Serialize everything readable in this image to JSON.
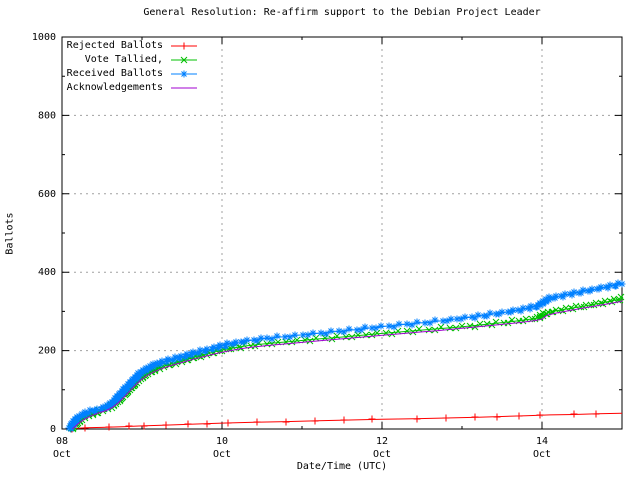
{
  "title": "General Resolution: Re-affirm support to the Debian Project Leader",
  "axes": {
    "ylabel": "Ballots",
    "xlabel": "Date/Time (UTC)",
    "yrange": [
      0,
      1000
    ],
    "xrange_days": [
      0,
      7
    ],
    "yticks": [
      0,
      200,
      400,
      600,
      800,
      1000
    ],
    "yminor": [
      100,
      300,
      500,
      700,
      900
    ],
    "xticks": [
      {
        "t": 0,
        "line1": "08",
        "line2": "Oct"
      },
      {
        "t": 2,
        "line1": "10",
        "line2": "Oct"
      },
      {
        "t": 4,
        "line1": "12",
        "line2": "Oct"
      },
      {
        "t": 6,
        "line1": "14",
        "line2": "Oct"
      }
    ],
    "xminor_days": [
      1,
      3,
      5
    ],
    "grid_y": [
      200,
      400,
      600,
      800
    ],
    "grid_x_days": [
      2,
      4,
      6
    ]
  },
  "colors": {
    "background": "#ffffff",
    "border": "#000000",
    "grid": "#a0a0a0",
    "text": "#000000"
  },
  "chart_data": {
    "type": "line",
    "x_unit": "days since 08 Oct 00:00 UTC",
    "ylabel": "Ballots",
    "xlabel": "Date/Time (UTC)",
    "legend_position": "top-left",
    "grid": true,
    "series": [
      {
        "name": "Rejected Ballots",
        "color": "#ff0000",
        "marker": "plus",
        "marker_value_step": 1.8,
        "points": [
          [
            0.12,
            1
          ],
          [
            0.3,
            3
          ],
          [
            0.5,
            4
          ],
          [
            0.8,
            6
          ],
          [
            1.0,
            8
          ],
          [
            1.3,
            10
          ],
          [
            1.6,
            12
          ],
          [
            2.0,
            15
          ],
          [
            2.4,
            17
          ],
          [
            2.8,
            19
          ],
          [
            3.2,
            21
          ],
          [
            3.6,
            23
          ],
          [
            4.0,
            25
          ],
          [
            4.4,
            26
          ],
          [
            4.8,
            28
          ],
          [
            5.2,
            30
          ],
          [
            5.5,
            32
          ],
          [
            5.8,
            34
          ],
          [
            6.1,
            36
          ],
          [
            6.4,
            37
          ],
          [
            6.7,
            39
          ],
          [
            7.0,
            40
          ]
        ]
      },
      {
        "name": "Vote Tallied,",
        "color": "#00c000",
        "marker": "cross",
        "marker_value_step": 1.5,
        "points": [
          [
            0.12,
            0
          ],
          [
            0.15,
            8
          ],
          [
            0.19,
            16
          ],
          [
            0.24,
            24
          ],
          [
            0.31,
            32
          ],
          [
            0.39,
            39
          ],
          [
            0.47,
            45
          ],
          [
            0.55,
            50
          ],
          [
            0.62,
            57
          ],
          [
            0.68,
            67
          ],
          [
            0.74,
            79
          ],
          [
            0.8,
            92
          ],
          [
            0.86,
            105
          ],
          [
            0.93,
            119
          ],
          [
            1.0,
            132
          ],
          [
            1.08,
            143
          ],
          [
            1.17,
            152
          ],
          [
            1.27,
            160
          ],
          [
            1.38,
            167
          ],
          [
            1.5,
            174
          ],
          [
            1.63,
            182
          ],
          [
            1.76,
            189
          ],
          [
            1.89,
            196
          ],
          [
            2.02,
            202
          ],
          [
            2.15,
            207
          ],
          [
            2.3,
            212
          ],
          [
            2.48,
            216
          ],
          [
            2.68,
            220
          ],
          [
            2.9,
            224
          ],
          [
            3.15,
            229
          ],
          [
            3.4,
            233
          ],
          [
            3.68,
            238
          ],
          [
            3.95,
            243
          ],
          [
            4.18,
            247
          ],
          [
            4.42,
            251
          ],
          [
            4.66,
            255
          ],
          [
            4.9,
            259
          ],
          [
            5.12,
            263
          ],
          [
            5.35,
            268
          ],
          [
            5.58,
            273
          ],
          [
            5.78,
            278
          ],
          [
            5.95,
            283
          ],
          [
            6.04,
            294
          ],
          [
            6.14,
            300
          ],
          [
            6.28,
            305
          ],
          [
            6.45,
            311
          ],
          [
            6.62,
            317
          ],
          [
            6.78,
            323
          ],
          [
            6.9,
            328
          ],
          [
            7.0,
            333
          ]
        ]
      },
      {
        "name": "Received Ballots",
        "color": "#0080ff",
        "marker": "asterisk",
        "marker_value_step": 1.5,
        "points": [
          [
            0.1,
            0
          ],
          [
            0.13,
            10
          ],
          [
            0.16,
            20
          ],
          [
            0.2,
            28
          ],
          [
            0.26,
            36
          ],
          [
            0.33,
            43
          ],
          [
            0.4,
            47
          ],
          [
            0.47,
            51
          ],
          [
            0.54,
            55
          ],
          [
            0.6,
            61
          ],
          [
            0.66,
            72
          ],
          [
            0.72,
            85
          ],
          [
            0.78,
            99
          ],
          [
            0.84,
            112
          ],
          [
            0.9,
            125
          ],
          [
            0.97,
            140
          ],
          [
            1.04,
            150
          ],
          [
            1.12,
            159
          ],
          [
            1.2,
            167
          ],
          [
            1.3,
            173
          ],
          [
            1.42,
            180
          ],
          [
            1.54,
            187
          ],
          [
            1.66,
            194
          ],
          [
            1.78,
            200
          ],
          [
            1.9,
            206
          ],
          [
            2.0,
            212
          ],
          [
            2.12,
            218
          ],
          [
            2.25,
            223
          ],
          [
            2.4,
            227
          ],
          [
            2.55,
            231
          ],
          [
            2.75,
            235
          ],
          [
            2.95,
            239
          ],
          [
            3.2,
            244
          ],
          [
            3.45,
            249
          ],
          [
            3.7,
            254
          ],
          [
            3.95,
            260
          ],
          [
            4.15,
            264
          ],
          [
            4.35,
            268
          ],
          [
            4.55,
            272
          ],
          [
            4.75,
            276
          ],
          [
            4.95,
            281
          ],
          [
            5.15,
            286
          ],
          [
            5.35,
            292
          ],
          [
            5.55,
            298
          ],
          [
            5.72,
            304
          ],
          [
            5.85,
            309
          ],
          [
            5.95,
            314
          ],
          [
            6.02,
            324
          ],
          [
            6.1,
            333
          ],
          [
            6.22,
            339
          ],
          [
            6.38,
            345
          ],
          [
            6.52,
            351
          ],
          [
            6.68,
            357
          ],
          [
            6.82,
            363
          ],
          [
            6.92,
            367
          ],
          [
            7.0,
            371
          ]
        ]
      },
      {
        "name": "Acknowledgements",
        "color": "#a000d0",
        "marker": null,
        "marker_value_step": null,
        "points": [
          [
            0.13,
            0
          ],
          [
            0.2,
            13
          ],
          [
            0.28,
            25
          ],
          [
            0.37,
            34
          ],
          [
            0.46,
            41
          ],
          [
            0.55,
            47
          ],
          [
            0.63,
            55
          ],
          [
            0.7,
            66
          ],
          [
            0.77,
            80
          ],
          [
            0.84,
            95
          ],
          [
            0.91,
            110
          ],
          [
            0.98,
            124
          ],
          [
            1.06,
            136
          ],
          [
            1.15,
            146
          ],
          [
            1.26,
            155
          ],
          [
            1.38,
            163
          ],
          [
            1.52,
            171
          ],
          [
            1.66,
            179
          ],
          [
            1.8,
            186
          ],
          [
            1.94,
            193
          ],
          [
            2.08,
            199
          ],
          [
            2.24,
            205
          ],
          [
            2.42,
            210
          ],
          [
            2.62,
            214
          ],
          [
            2.85,
            218
          ],
          [
            3.1,
            223
          ],
          [
            3.38,
            228
          ],
          [
            3.66,
            233
          ],
          [
            3.94,
            238
          ],
          [
            4.18,
            242
          ],
          [
            4.44,
            247
          ],
          [
            4.7,
            251
          ],
          [
            4.95,
            256
          ],
          [
            5.2,
            261
          ],
          [
            5.45,
            266
          ],
          [
            5.7,
            271
          ],
          [
            5.9,
            276
          ],
          [
            6.0,
            280
          ],
          [
            6.06,
            290
          ],
          [
            6.18,
            296
          ],
          [
            6.34,
            302
          ],
          [
            6.5,
            308
          ],
          [
            6.68,
            314
          ],
          [
            6.84,
            320
          ],
          [
            7.0,
            326
          ]
        ]
      }
    ]
  },
  "legend": {
    "items": [
      "Rejected Ballots",
      "Vote Tallied,",
      "Received Ballots",
      "Acknowledgements"
    ]
  }
}
